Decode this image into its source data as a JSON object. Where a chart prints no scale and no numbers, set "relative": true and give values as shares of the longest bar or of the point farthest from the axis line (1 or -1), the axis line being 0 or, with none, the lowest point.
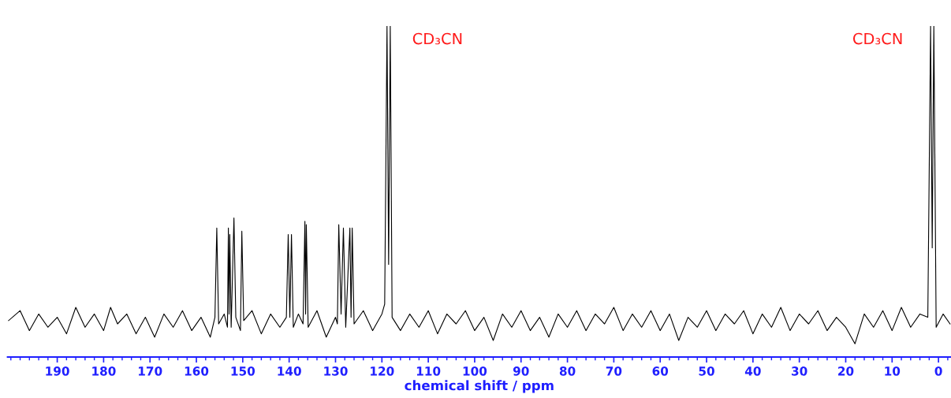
{
  "chart_data": {
    "type": "line",
    "relative": true,
    "xlabel": "chemical shift / ppm",
    "tick_labels": "x",
    "marker": "none",
    "line_style": "solid",
    "xlim": [
      200.7,
      -2.7
    ],
    "xticks": [
      190,
      180,
      170,
      160,
      150,
      140,
      130,
      120,
      110,
      100,
      90,
      80,
      70,
      60,
      50,
      40,
      30,
      20,
      10,
      0
    ],
    "annotations": [
      {
        "text": "CD₃CN",
        "x": 118.2,
        "y": 1.0
      },
      {
        "text": "CD₃CN",
        "x": 1.0,
        "y": 1.0
      }
    ],
    "series": [
      {
        "color": "#000000",
        "x": [
          200.5,
          198,
          196,
          194,
          192,
          190,
          188,
          186,
          184,
          182,
          180,
          178.5,
          177,
          175,
          173,
          171,
          169,
          167,
          165,
          163,
          161,
          159,
          157,
          156,
          155.6,
          155.2,
          154,
          153.3,
          153.1,
          152.95,
          152.8,
          152.5,
          151.9,
          151.5,
          150.5,
          150.2,
          149.8,
          148,
          146,
          144,
          142,
          140.6,
          140.2,
          139.85,
          139.5,
          139.1,
          138,
          137,
          136.6,
          136.45,
          136.3,
          135.9,
          134,
          132,
          130,
          129.6,
          129.3,
          128.8,
          128.3,
          127.8,
          126.9,
          126.65,
          126.4,
          126,
          124,
          122,
          120,
          119.4,
          118.9,
          118.55,
          118.2,
          117.8,
          116,
          114,
          112,
          110,
          108,
          106,
          104,
          102,
          100,
          98,
          96,
          94,
          92,
          90,
          88,
          86,
          84,
          82,
          80,
          78,
          76,
          74,
          72,
          70,
          68,
          66,
          64,
          62,
          60,
          58,
          56,
          54,
          52,
          50,
          48,
          46,
          44,
          42,
          40,
          38,
          36,
          34,
          32,
          30,
          28,
          26,
          24,
          22,
          20,
          18,
          16,
          14,
          12,
          10,
          8,
          6,
          4,
          2.3,
          1.7,
          1.35,
          1.0,
          0.5,
          -1,
          -2.5
        ],
        "values": [
          0.11,
          0.14,
          0.08,
          0.13,
          0.09,
          0.12,
          0.07,
          0.15,
          0.09,
          0.13,
          0.08,
          0.15,
          0.1,
          0.13,
          0.07,
          0.12,
          0.06,
          0.13,
          0.09,
          0.14,
          0.08,
          0.12,
          0.06,
          0.12,
          0.39,
          0.1,
          0.13,
          0.09,
          0.39,
          0.13,
          0.37,
          0.09,
          0.42,
          0.12,
          0.08,
          0.38,
          0.11,
          0.14,
          0.07,
          0.13,
          0.09,
          0.12,
          0.37,
          0.12,
          0.37,
          0.09,
          0.13,
          0.1,
          0.41,
          0.13,
          0.4,
          0.09,
          0.14,
          0.06,
          0.12,
          0.1,
          0.4,
          0.13,
          0.39,
          0.09,
          0.39,
          0.12,
          0.39,
          0.1,
          0.14,
          0.08,
          0.13,
          0.16,
          1.0,
          0.28,
          1.0,
          0.12,
          0.08,
          0.13,
          0.09,
          0.14,
          0.07,
          0.13,
          0.1,
          0.14,
          0.08,
          0.12,
          0.05,
          0.13,
          0.09,
          0.14,
          0.08,
          0.12,
          0.06,
          0.13,
          0.09,
          0.14,
          0.08,
          0.13,
          0.1,
          0.15,
          0.08,
          0.13,
          0.09,
          0.14,
          0.08,
          0.13,
          0.05,
          0.12,
          0.09,
          0.14,
          0.08,
          0.13,
          0.1,
          0.14,
          0.07,
          0.13,
          0.09,
          0.15,
          0.08,
          0.13,
          0.1,
          0.14,
          0.08,
          0.12,
          0.09,
          0.04,
          0.13,
          0.09,
          0.14,
          0.08,
          0.15,
          0.09,
          0.13,
          0.12,
          1.0,
          0.33,
          1.0,
          0.09,
          0.13,
          0.1
        ]
      }
    ]
  }
}
